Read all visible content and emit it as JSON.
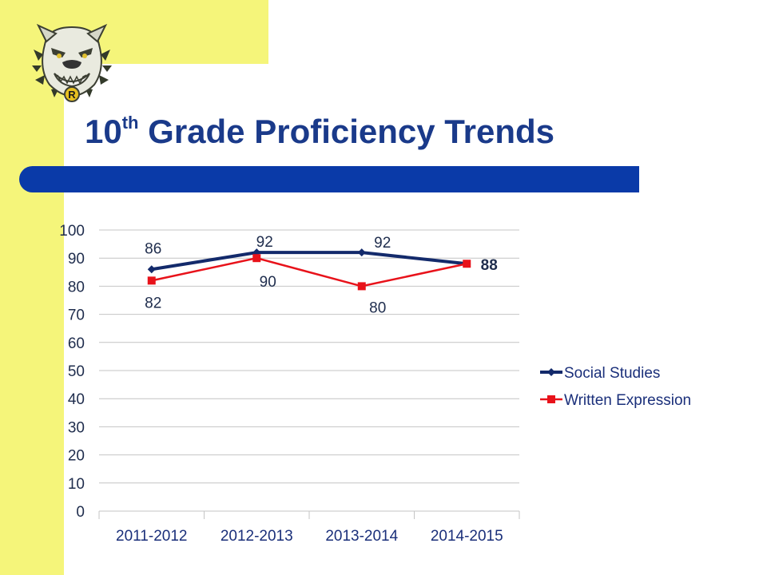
{
  "slide": {
    "title_main": "10",
    "title_sup": "th",
    "title_rest": " Grade Proficiency Trends",
    "logo_icon": "bulldog-mascot-icon",
    "logo_letter": "R",
    "colors": {
      "yellow": "#f5f57a",
      "title_blue": "#1a3a8a",
      "bar_blue": "#0a3aa8"
    }
  },
  "chart_data": {
    "type": "line",
    "title": "",
    "xlabel": "",
    "ylabel": "",
    "categories": [
      "2011-2012",
      "2012-2013",
      "2013-2014",
      "2014-2015"
    ],
    "ylim": [
      0,
      100
    ],
    "yticks": [
      0,
      10,
      20,
      30,
      40,
      50,
      60,
      70,
      80,
      90,
      100
    ],
    "grid": true,
    "legend_position": "right",
    "series": [
      {
        "name": "Social Studies",
        "values": [
          86,
          92,
          92,
          88
        ],
        "labels": [
          "86",
          "92",
          "92",
          "88"
        ],
        "color": "#132a6b",
        "marker": "diamond"
      },
      {
        "name": "Written Expression",
        "values": [
          82,
          90,
          80,
          88
        ],
        "labels": [
          "82",
          "90",
          "80",
          ""
        ],
        "color": "#e8121a",
        "marker": "square"
      }
    ]
  }
}
